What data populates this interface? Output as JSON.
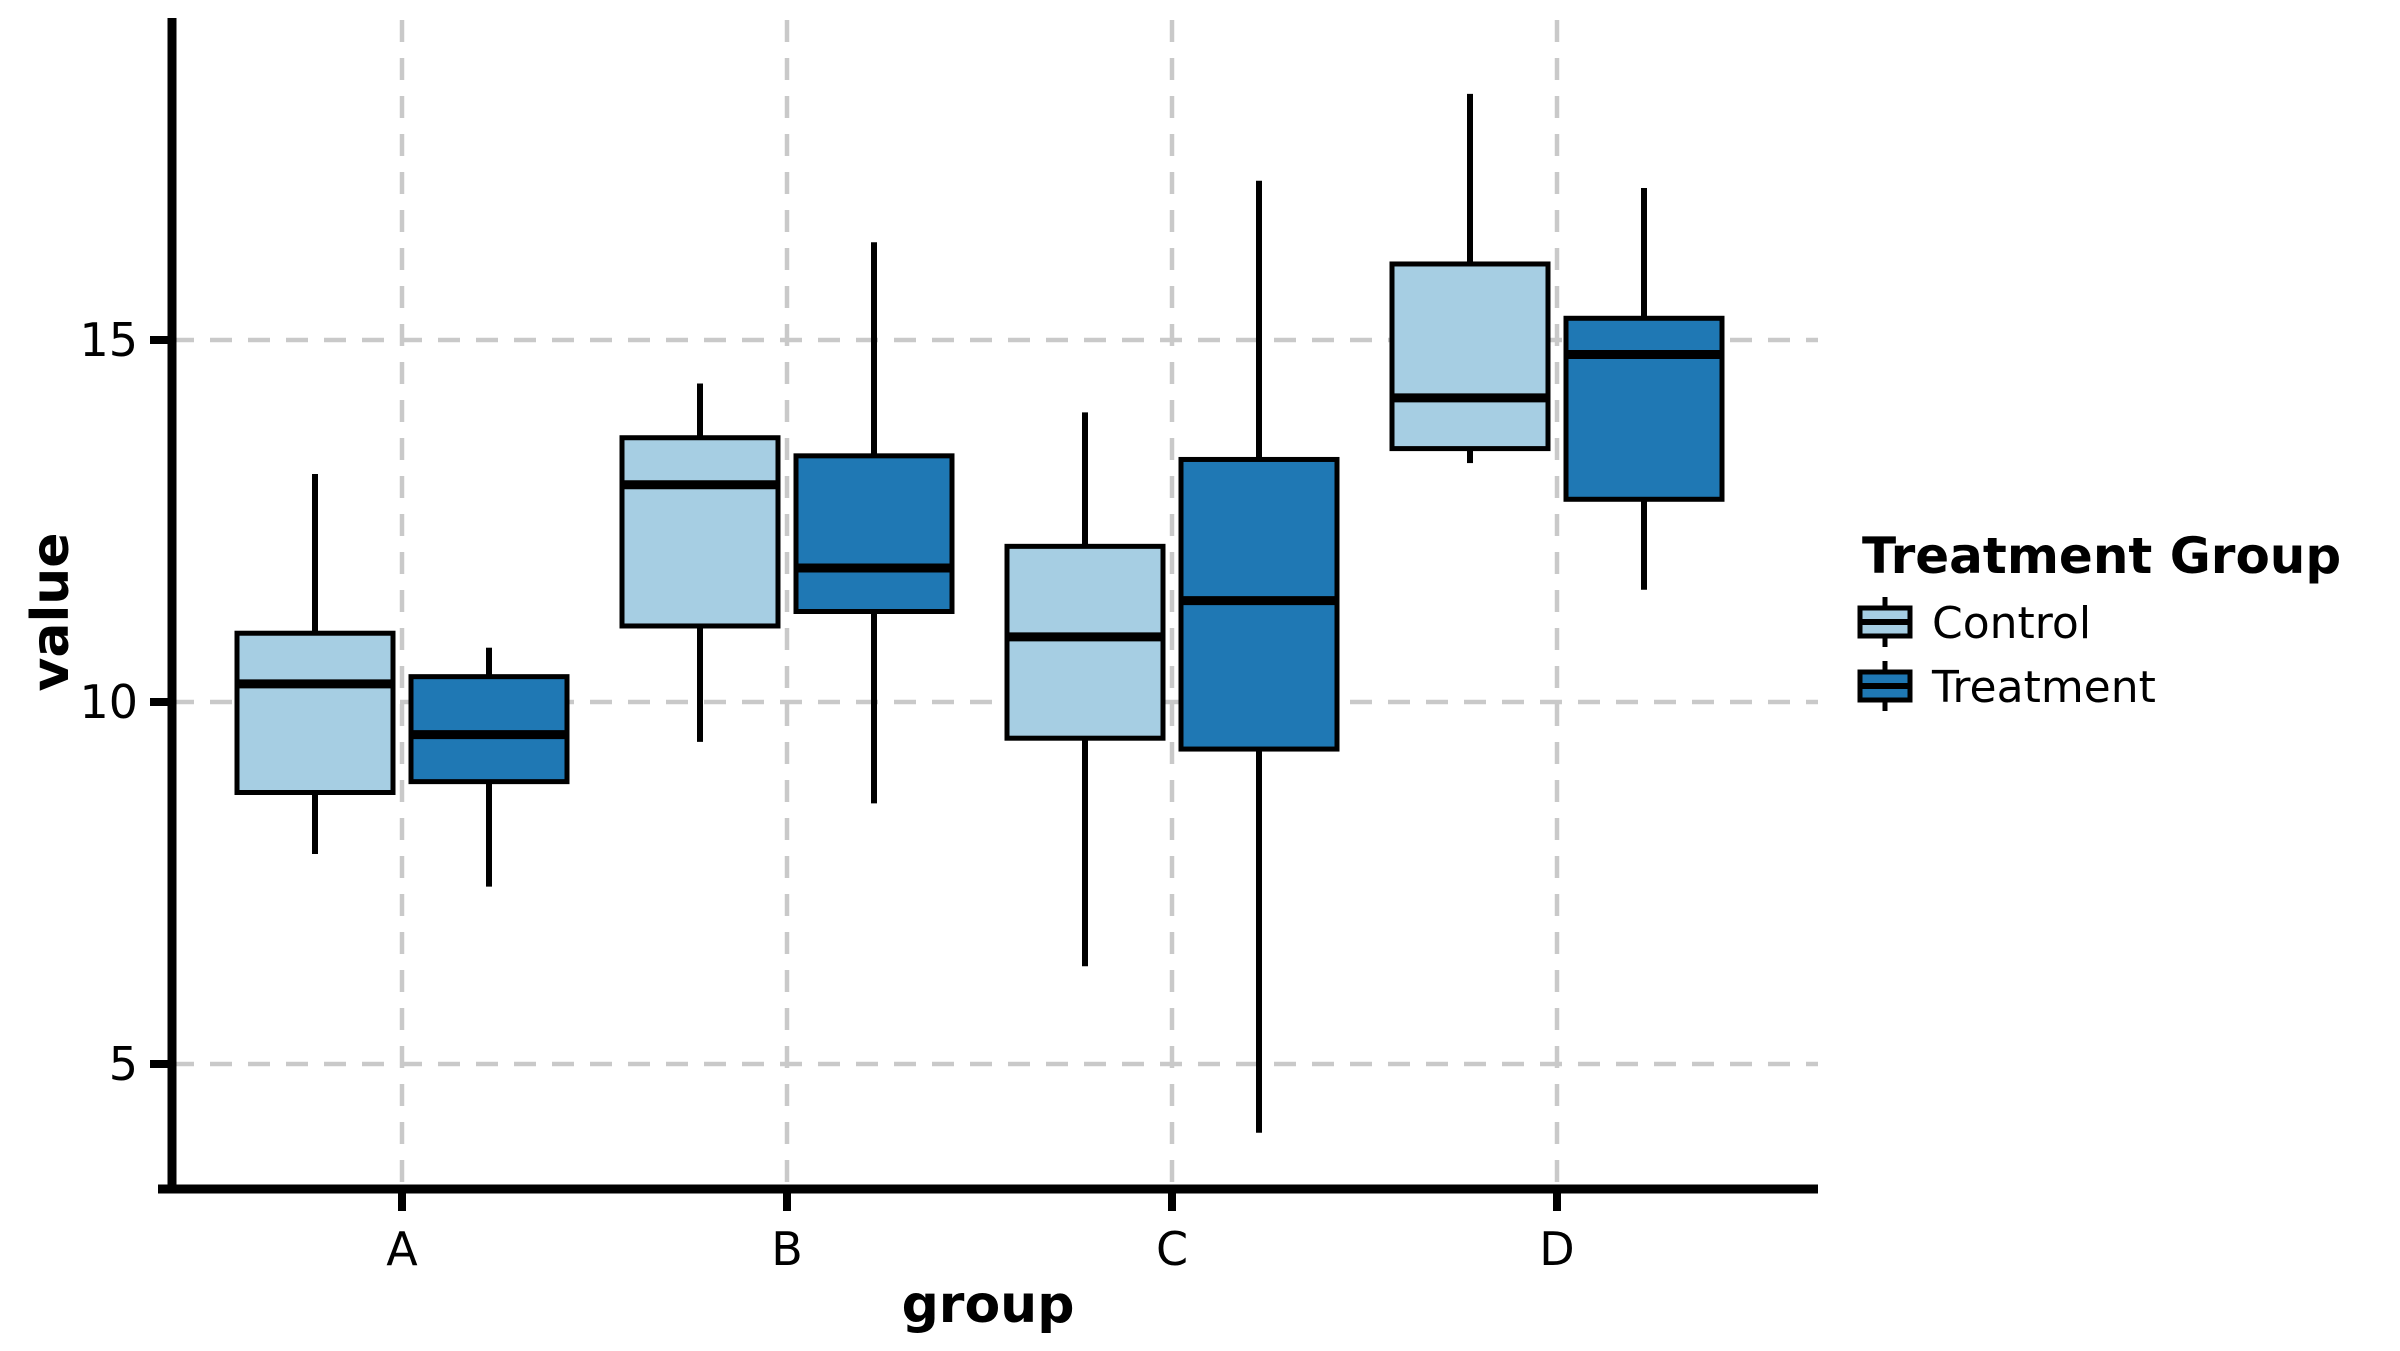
{
  "colors": {
    "background": "#ffffff",
    "grid": "#c9c9c9",
    "axis": "#000000",
    "text": "#000000",
    "control_fill": "#a6cee3",
    "treatment_fill": "#1f78b4"
  },
  "chart_data": {
    "type": "boxplot",
    "title": "",
    "xlabel": "group",
    "ylabel": "value",
    "categories": [
      "A",
      "B",
      "C",
      "D"
    ],
    "y_ticks": [
      5,
      10,
      15
    ],
    "ylim": [
      3.2,
      19.4
    ],
    "grid": "dashed gray horizontal lines at y ticks and vertical lines at category centers",
    "legend_title": "Treatment Group",
    "legend_position": "right",
    "series": [
      {
        "name": "Control",
        "color": "#a6cee3",
        "boxes": [
          {
            "category": "A",
            "min": 7.9,
            "q1": 8.75,
            "median": 10.25,
            "q3": 10.95,
            "max": 13.15
          },
          {
            "category": "B",
            "min": 9.45,
            "q1": 11.05,
            "median": 13.0,
            "q3": 13.65,
            "max": 14.4
          },
          {
            "category": "C",
            "min": 6.35,
            "q1": 9.5,
            "median": 10.9,
            "q3": 12.15,
            "max": 14.0
          },
          {
            "category": "D",
            "min": 13.3,
            "q1": 13.5,
            "median": 14.2,
            "q3": 16.05,
            "max": 18.4
          }
        ]
      },
      {
        "name": "Treatment",
        "color": "#1f78b4",
        "boxes": [
          {
            "category": "A",
            "min": 7.45,
            "q1": 8.9,
            "median": 9.55,
            "q3": 10.35,
            "max": 10.75
          },
          {
            "category": "B",
            "min": 8.6,
            "q1": 11.25,
            "median": 11.85,
            "q3": 13.4,
            "max": 16.35
          },
          {
            "category": "C",
            "min": 4.05,
            "q1": 9.35,
            "median": 11.4,
            "q3": 13.35,
            "max": 17.2
          },
          {
            "category": "D",
            "min": 11.55,
            "q1": 12.8,
            "median": 14.8,
            "q3": 15.3,
            "max": 17.1
          }
        ]
      }
    ]
  }
}
